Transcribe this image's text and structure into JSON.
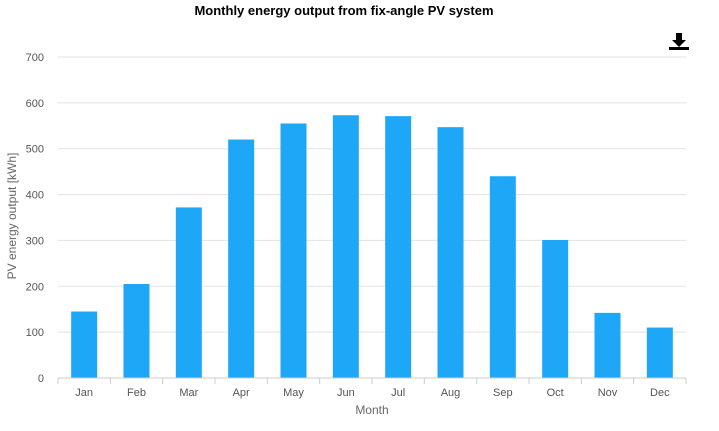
{
  "chart_data": {
    "type": "bar",
    "title": "Monthly energy output from fix-angle PV system",
    "xlabel": "Month",
    "ylabel": "PV energy output [kWh]",
    "categories": [
      "Jan",
      "Feb",
      "Mar",
      "Apr",
      "May",
      "Jun",
      "Jul",
      "Aug",
      "Sep",
      "Oct",
      "Nov",
      "Dec"
    ],
    "values": [
      145,
      205,
      372,
      520,
      555,
      573,
      571,
      547,
      440,
      301,
      142,
      110
    ],
    "ylim": [
      0,
      700
    ],
    "yticks": [
      0,
      100,
      200,
      300,
      400,
      500,
      600,
      700
    ],
    "grid": true,
    "bar_color": "#1fa7f7"
  },
  "toolbar": {
    "download_icon": "download-icon"
  }
}
